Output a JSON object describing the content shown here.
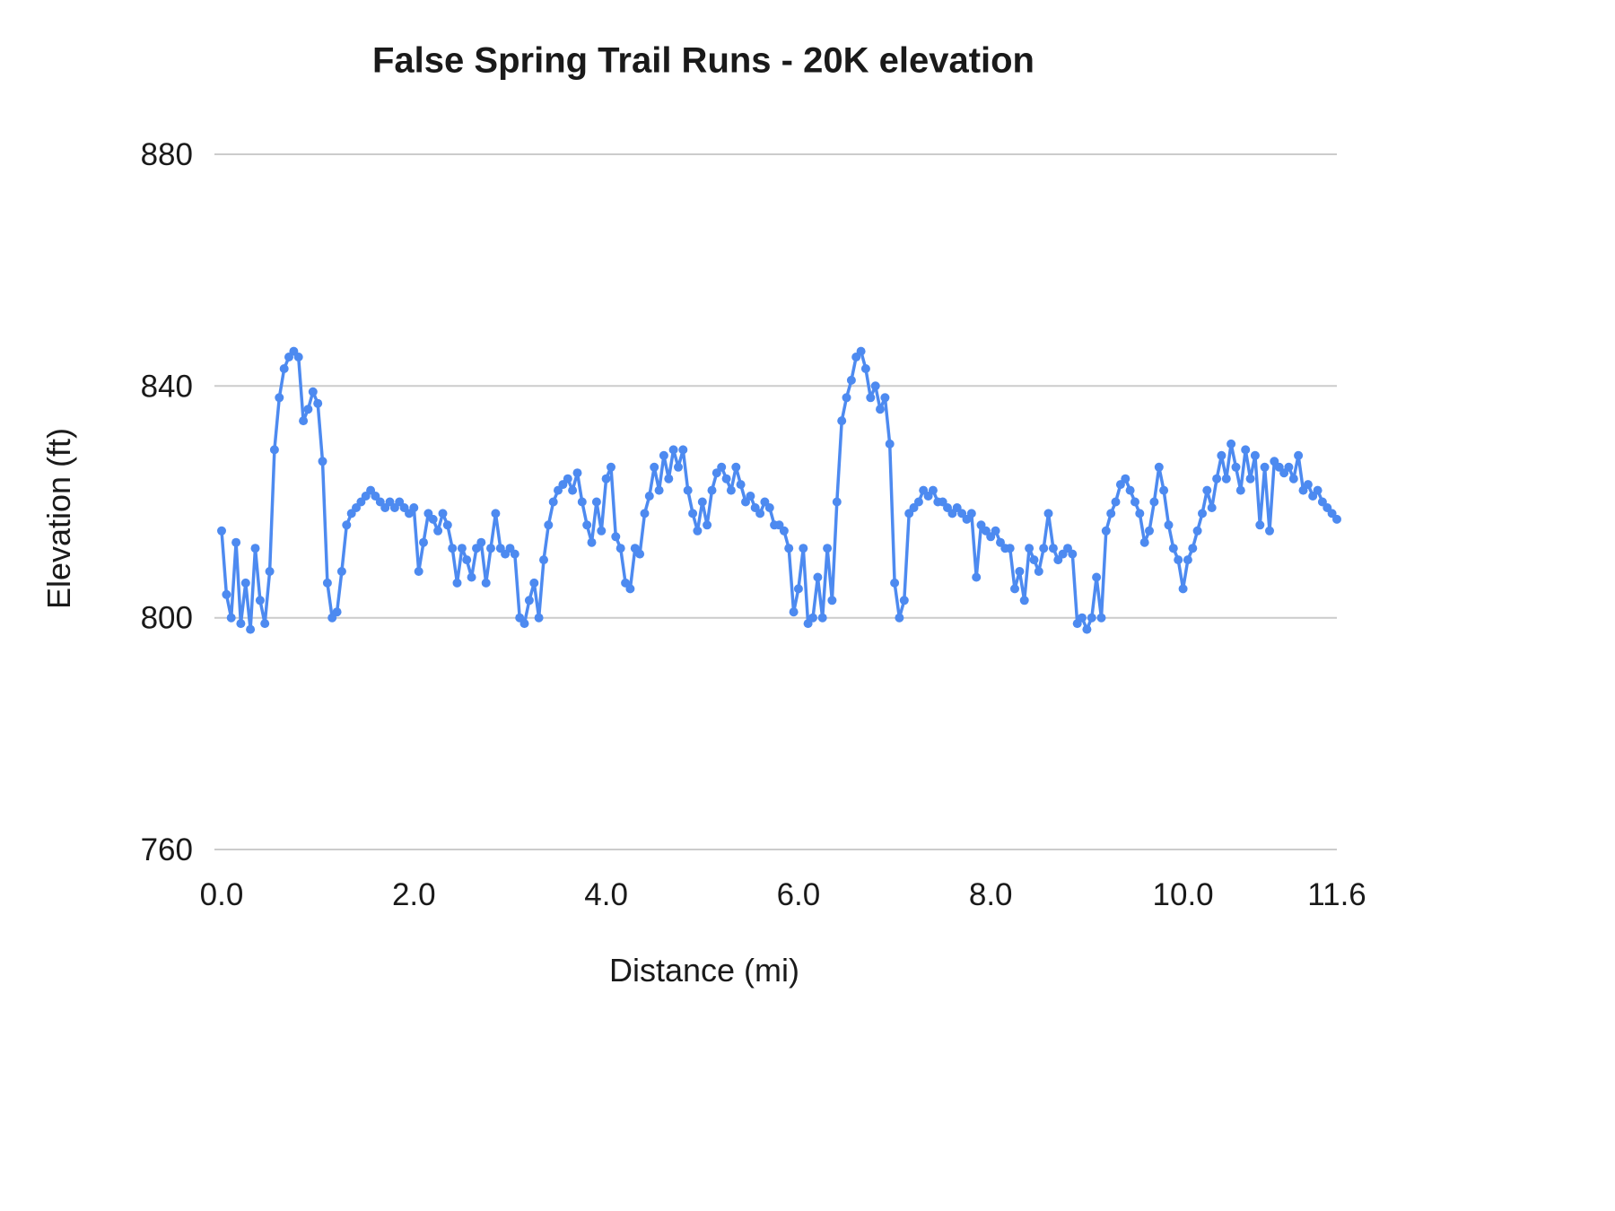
{
  "chart_data": {
    "type": "line",
    "title": "False Spring Trail Runs - 20K elevation",
    "xlabel": "Distance (mi)",
    "ylabel": "Elevation (ft)",
    "xlim": [
      0,
      11.6
    ],
    "ylim": [
      760,
      880
    ],
    "yticks": [
      760,
      800,
      840,
      880
    ],
    "ytick_labels": [
      "760",
      "800",
      "840",
      "880"
    ],
    "xticks": [
      0.0,
      2.0,
      4.0,
      6.0,
      8.0,
      10.0,
      11.6
    ],
    "xtick_labels": [
      "0.0",
      "2.0",
      "4.0",
      "6.0",
      "8.0",
      "10.0",
      "11.6"
    ],
    "grid": "horizontal",
    "legend": "none",
    "marker": "circle",
    "colors": {
      "line": "#4d8af0",
      "marker": "#4d8af0",
      "grid": "#cccccc",
      "text": "#1a1a1a"
    },
    "series": [
      {
        "name": "Elevation",
        "x_start": 0.0,
        "x_step": 0.05,
        "x_end": 11.6,
        "y": [
          815,
          804,
          800,
          813,
          799,
          806,
          798,
          812,
          803,
          799,
          808,
          829,
          838,
          843,
          845,
          846,
          845,
          834,
          836,
          839,
          837,
          827,
          806,
          800,
          801,
          808,
          816,
          818,
          819,
          820,
          821,
          822,
          821,
          820,
          819,
          820,
          819,
          820,
          819,
          818,
          819,
          808,
          813,
          818,
          817,
          815,
          818,
          816,
          812,
          806,
          812,
          810,
          807,
          812,
          813,
          806,
          812,
          818,
          812,
          811,
          812,
          811,
          800,
          799,
          803,
          806,
          800,
          810,
          816,
          820,
          822,
          823,
          824,
          822,
          825,
          820,
          816,
          813,
          820,
          815,
          824,
          826,
          814,
          812,
          806,
          805,
          812,
          811,
          818,
          821,
          826,
          822,
          828,
          824,
          829,
          826,
          829,
          822,
          818,
          815,
          820,
          816,
          822,
          825,
          826,
          824,
          822,
          826,
          823,
          820,
          821,
          819,
          818,
          820,
          819,
          816,
          816,
          815,
          812,
          801,
          805,
          812,
          799,
          800,
          807,
          800,
          812,
          803,
          820,
          834,
          838,
          841,
          845,
          846,
          843,
          838,
          840,
          836,
          838,
          830,
          806,
          800,
          803,
          818,
          819,
          820,
          822,
          821,
          822,
          820,
          820,
          819,
          818,
          819,
          818,
          817,
          818,
          807,
          816,
          815,
          814,
          815,
          813,
          812,
          812,
          805,
          808,
          803,
          812,
          810,
          808,
          812,
          818,
          812,
          810,
          811,
          812,
          811,
          799,
          800,
          798,
          800,
          807,
          800,
          815,
          818,
          820,
          823,
          824,
          822,
          820,
          818,
          813,
          815,
          820,
          826,
          822,
          816,
          812,
          810,
          805,
          810,
          812,
          815,
          818,
          822,
          819,
          824,
          828,
          824,
          830,
          826,
          822,
          829,
          824,
          828,
          816,
          826,
          815,
          827,
          826,
          825,
          826,
          824,
          828,
          822,
          823,
          821,
          822,
          820,
          819,
          818,
          817
        ]
      }
    ]
  }
}
